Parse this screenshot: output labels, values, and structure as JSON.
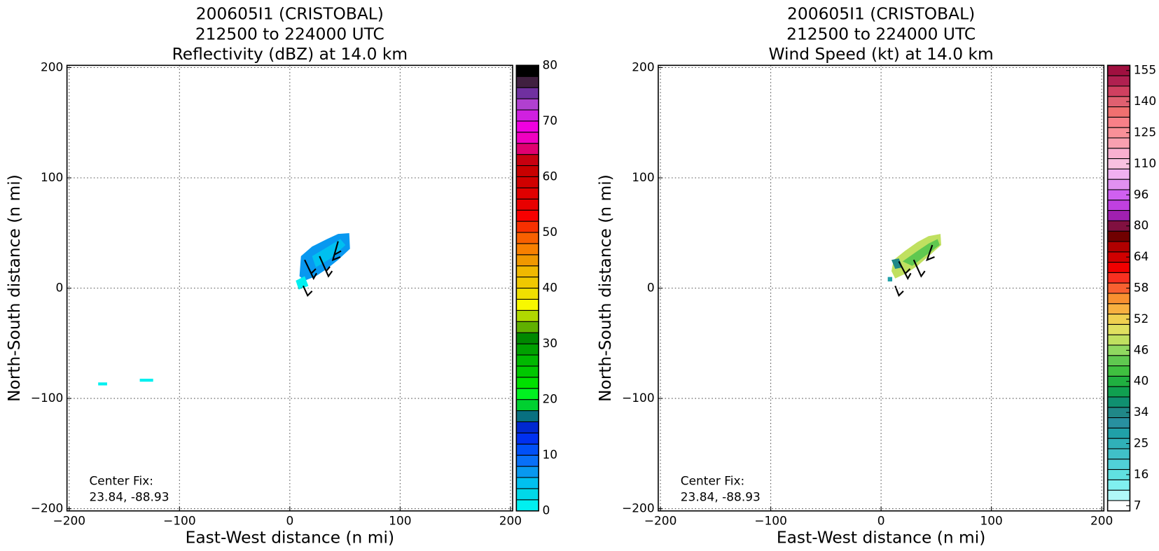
{
  "chart_data": [
    {
      "type": "heatmap",
      "title": [
        "200605I1 (CRISTOBAL)",
        "212500 to 224000 UTC",
        "Reflectivity (dBZ) at 14.0 km"
      ],
      "xlabel": "East-West distance (n mi)",
      "ylabel": "North-South distance (n mi)",
      "xlim": [
        -202,
        202
      ],
      "ylim": [
        -202,
        202
      ],
      "xticks": [
        {
          "value": -200,
          "label": "−200"
        },
        {
          "value": -100,
          "label": "−100"
        },
        0,
        100,
        200
      ],
      "yticks": [
        {
          "value": -200,
          "label": "−200"
        },
        {
          "value": -100,
          "label": "−100"
        },
        0,
        100,
        200
      ],
      "grid": true,
      "annotation": [
        "Center Fix:",
        "23.84, -88.93"
      ],
      "colorbar": {
        "scale": "linear",
        "clim": [
          0,
          80
        ],
        "ticks": [
          0,
          10,
          20,
          30,
          40,
          50,
          60,
          70,
          80
        ],
        "colors": [
          "#00f0f0",
          "#00d8e8",
          "#00c0f0",
          "#0898f0",
          "#0870f8",
          "#0050f8",
          "#0030f0",
          "#0028d0",
          "#087080",
          "#00d030",
          "#00f020",
          "#00e000",
          "#00c800",
          "#00b800",
          "#00a000",
          "#008800",
          "#60b000",
          "#b0d800",
          "#f8f800",
          "#f0e000",
          "#f0c800",
          "#f0b800",
          "#f09800",
          "#f88000",
          "#f86000",
          "#f83000",
          "#f80000",
          "#e80000",
          "#e00000",
          "#d00000",
          "#c80000",
          "#c80010",
          "#e00070",
          "#f000c0",
          "#f000e0",
          "#d020e0",
          "#b040d0",
          "#7030a0",
          "#402040",
          "#000000"
        ]
      }
    },
    {
      "type": "heatmap",
      "title": [
        "200605I1 (CRISTOBAL)",
        "212500 to 224000 UTC",
        "Wind Speed (kt) at 14.0 km"
      ],
      "xlabel": "East-West distance (n mi)",
      "ylabel": "North-South distance (n mi)",
      "xlim": [
        -202,
        202
      ],
      "ylim": [
        -202,
        202
      ],
      "xticks": [
        {
          "value": -200,
          "label": "−200"
        },
        {
          "value": -100,
          "label": "−100"
        },
        0,
        100,
        200
      ],
      "yticks": [
        {
          "value": -200,
          "label": "−200"
        },
        {
          "value": -100,
          "label": "−100"
        },
        0,
        100,
        200
      ],
      "grid": true,
      "annotation": [
        "Center Fix:",
        "23.84, -88.93"
      ],
      "colorbar": {
        "scale": "levels",
        "ticks": [
          7,
          16,
          25,
          34,
          40,
          46,
          52,
          58,
          64,
          80,
          96,
          110,
          125,
          140,
          155
        ],
        "colors": [
          "#ffffff",
          "#b0f8f8",
          "#80f0f0",
          "#60e0e0",
          "#50d0d8",
          "#40c0c8",
          "#30b0b8",
          "#20a0a8",
          "#2890a0",
          "#208888",
          "#109070",
          "#10a050",
          "#20b040",
          "#40c040",
          "#60c850",
          "#90d860",
          "#c0e060",
          "#e0e060",
          "#f0d050",
          "#f8b040",
          "#f89030",
          "#f86030",
          "#f83020",
          "#f00000",
          "#d00000",
          "#b00000",
          "#700000",
          "#801040",
          "#a020b0",
          "#c040e0",
          "#d060f0",
          "#e090f0",
          "#f0b0f0",
          "#f8c0e0",
          "#f8b0d0",
          "#f8a0b0",
          "#f89098",
          "#f88088",
          "#f07070",
          "#e06070",
          "#d04060",
          "#b02050",
          "#a01040"
        ]
      }
    }
  ]
}
